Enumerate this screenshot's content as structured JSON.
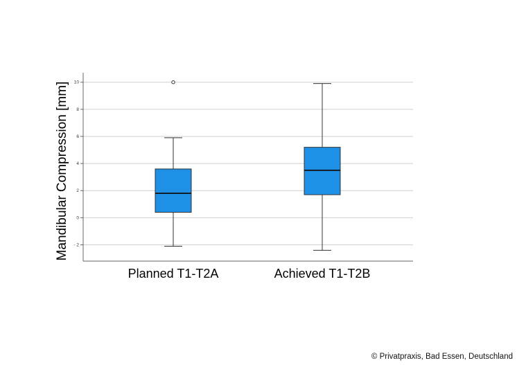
{
  "chart_data": {
    "type": "boxplot",
    "title": "",
    "xlabel": "",
    "ylabel": "Mandibular Compression [mm]",
    "ylim": [
      -3.2,
      10.7
    ],
    "yticks": [
      10,
      8,
      6,
      4,
      2,
      0,
      -2
    ],
    "ytick_labels": [
      "10",
      "8",
      "6",
      "4",
      "2",
      "0",
      "- 2"
    ],
    "grid": true,
    "categories": [
      "Planned T1-T2A",
      "Achieved T1-T2B"
    ],
    "boxes": [
      {
        "category": "Planned T1-T2A",
        "whisker_low": -2.1,
        "q1": 0.4,
        "median": 1.8,
        "q3": 3.6,
        "whisker_high": 5.9,
        "outliers": [
          10.0
        ]
      },
      {
        "category": "Achieved T1-T2B",
        "whisker_low": -2.4,
        "q1": 1.7,
        "median": 3.5,
        "q3": 5.2,
        "whisker_high": 9.9,
        "outliers": []
      }
    ],
    "box_color": "#1E90E6"
  },
  "credit": "© Privatpraxis, Bad Essen, Deutschland"
}
